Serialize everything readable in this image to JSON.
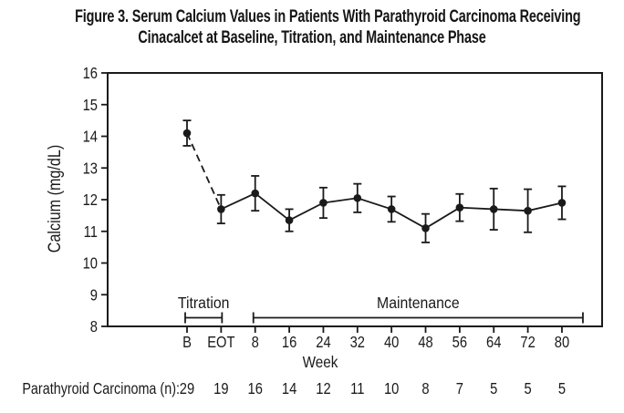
{
  "figure": {
    "title_line1": "Figure 3. Serum Calcium Values in Patients With Parathyroid Carcinoma Receiving",
    "title_line2": "Cinacalcet at Baseline, Titration, and Maintenance Phase"
  },
  "chart_data": {
    "type": "line",
    "title": "Figure 3. Serum Calcium Values in Patients With Parathyroid Carcinoma Receiving Cinacalcet at Baseline, Titration, and Maintenance Phase",
    "xlabel": "Week",
    "ylabel": "Calcium (mg/dL)",
    "ylim": [
      8,
      16
    ],
    "yticks": [
      16,
      15,
      14,
      13,
      12,
      11,
      10,
      9,
      8
    ],
    "categories": [
      "B",
      "EOT",
      "8",
      "16",
      "24",
      "32",
      "40",
      "48",
      "56",
      "64",
      "72",
      "80"
    ],
    "series": [
      {
        "name": "Parathyroid Carcinoma",
        "values": [
          14.1,
          11.7,
          12.2,
          11.35,
          11.9,
          12.05,
          11.7,
          11.1,
          11.75,
          11.7,
          11.65,
          11.9
        ],
        "error": [
          0.4,
          0.45,
          0.55,
          0.35,
          0.48,
          0.45,
          0.4,
          0.45,
          0.43,
          0.65,
          0.68,
          0.52
        ]
      }
    ],
    "line_style": {
      "dashed_segment": [
        "B",
        "EOT"
      ],
      "solid_segment": [
        "EOT",
        "80"
      ]
    },
    "marker": "filled-circle",
    "grid": false,
    "legend": "none",
    "phases": [
      {
        "label": "Titration",
        "from": "B",
        "to": "EOT"
      },
      {
        "label": "Maintenance",
        "from": "8",
        "to": "80"
      }
    ],
    "n_row": {
      "label": "Parathyroid Carcinoma (n):",
      "values": [
        "29",
        "19",
        "16",
        "14",
        "12",
        "11",
        "10",
        "8",
        "7",
        "5",
        "5",
        "5"
      ]
    },
    "colors": {
      "line": "#1a1a1a",
      "marker": "#1a1a1a",
      "background": "#ffffff"
    }
  }
}
